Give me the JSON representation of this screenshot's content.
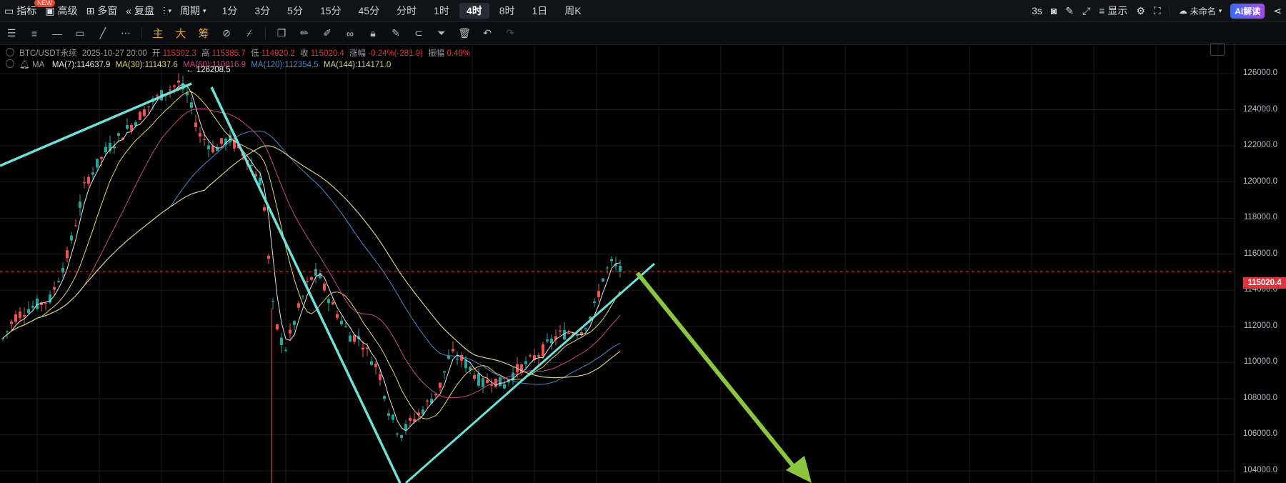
{
  "toolbar": {
    "indicators": "指标",
    "new_badge": "NEW",
    "advanced": "高级",
    "multi_window": "多窗",
    "replay": "复盘",
    "period_menu": "周期",
    "periods": [
      "1分",
      "3分",
      "5分",
      "15分",
      "45分",
      "分时",
      "1时",
      "4时",
      "8时",
      "1日",
      "周K"
    ],
    "active_period": "4时",
    "refresh": "3s",
    "display": "显示",
    "workspace": "未命名",
    "ai": "AI解读"
  },
  "drawing_tools": {
    "tool_icons": [
      "layers-icon",
      "menu-icon",
      "horizontal-line-icon",
      "rectangle-icon",
      "trendline-icon",
      "more-icon"
    ],
    "main_chart": "主",
    "big": "大",
    "chips": "筹",
    "edit_icons": [
      "copy-icon",
      "pencil-icon",
      "marker-icon",
      "link-icon",
      "lock-icon",
      "note-icon",
      "magnet-icon",
      "filter-icon",
      "trash-icon",
      "undo-icon",
      "redo-icon"
    ]
  },
  "legend": {
    "symbol": "BTC/USDT永续",
    "datetime": "2025-10-27 20:00",
    "open_label": "开",
    "open": "115302.3",
    "high_label": "高",
    "high": "115385.7",
    "low_label": "低",
    "low": "114920.2",
    "close_label": "收",
    "close": "115020.4",
    "change_label": "涨幅",
    "change": "-0.24%(-281.9)",
    "amp_label": "振幅",
    "amp": "0.40%",
    "ma_title": "MA",
    "ma7": "MA(7):114637.9",
    "ma30": "MA(30):111437.6",
    "ma60": "MA(60):110016.9",
    "ma120": "MA(120):112354.5",
    "ma144": "MA(144):114171.0"
  },
  "colors": {
    "up": "#26a69a",
    "down": "#ef5350",
    "ma7": "#e6e6e6",
    "ma30": "#e3d766",
    "ma60": "#c94a82",
    "ma120": "#4a8ac9",
    "ma144": "#cfd08a",
    "trend": "#6de0d8",
    "arrow": "#8cc63f",
    "price_tag": "#e0353c"
  },
  "axis": {
    "ticks": [
      "126000.0",
      "124000.0",
      "122000.0",
      "120000.0",
      "118000.0",
      "116000.0",
      "114000.0",
      "112000.0",
      "110000.0",
      "108000.0",
      "106000.0",
      "104000.0"
    ],
    "last_price": "115020.4",
    "peak_label": "← 126208.5"
  }
}
